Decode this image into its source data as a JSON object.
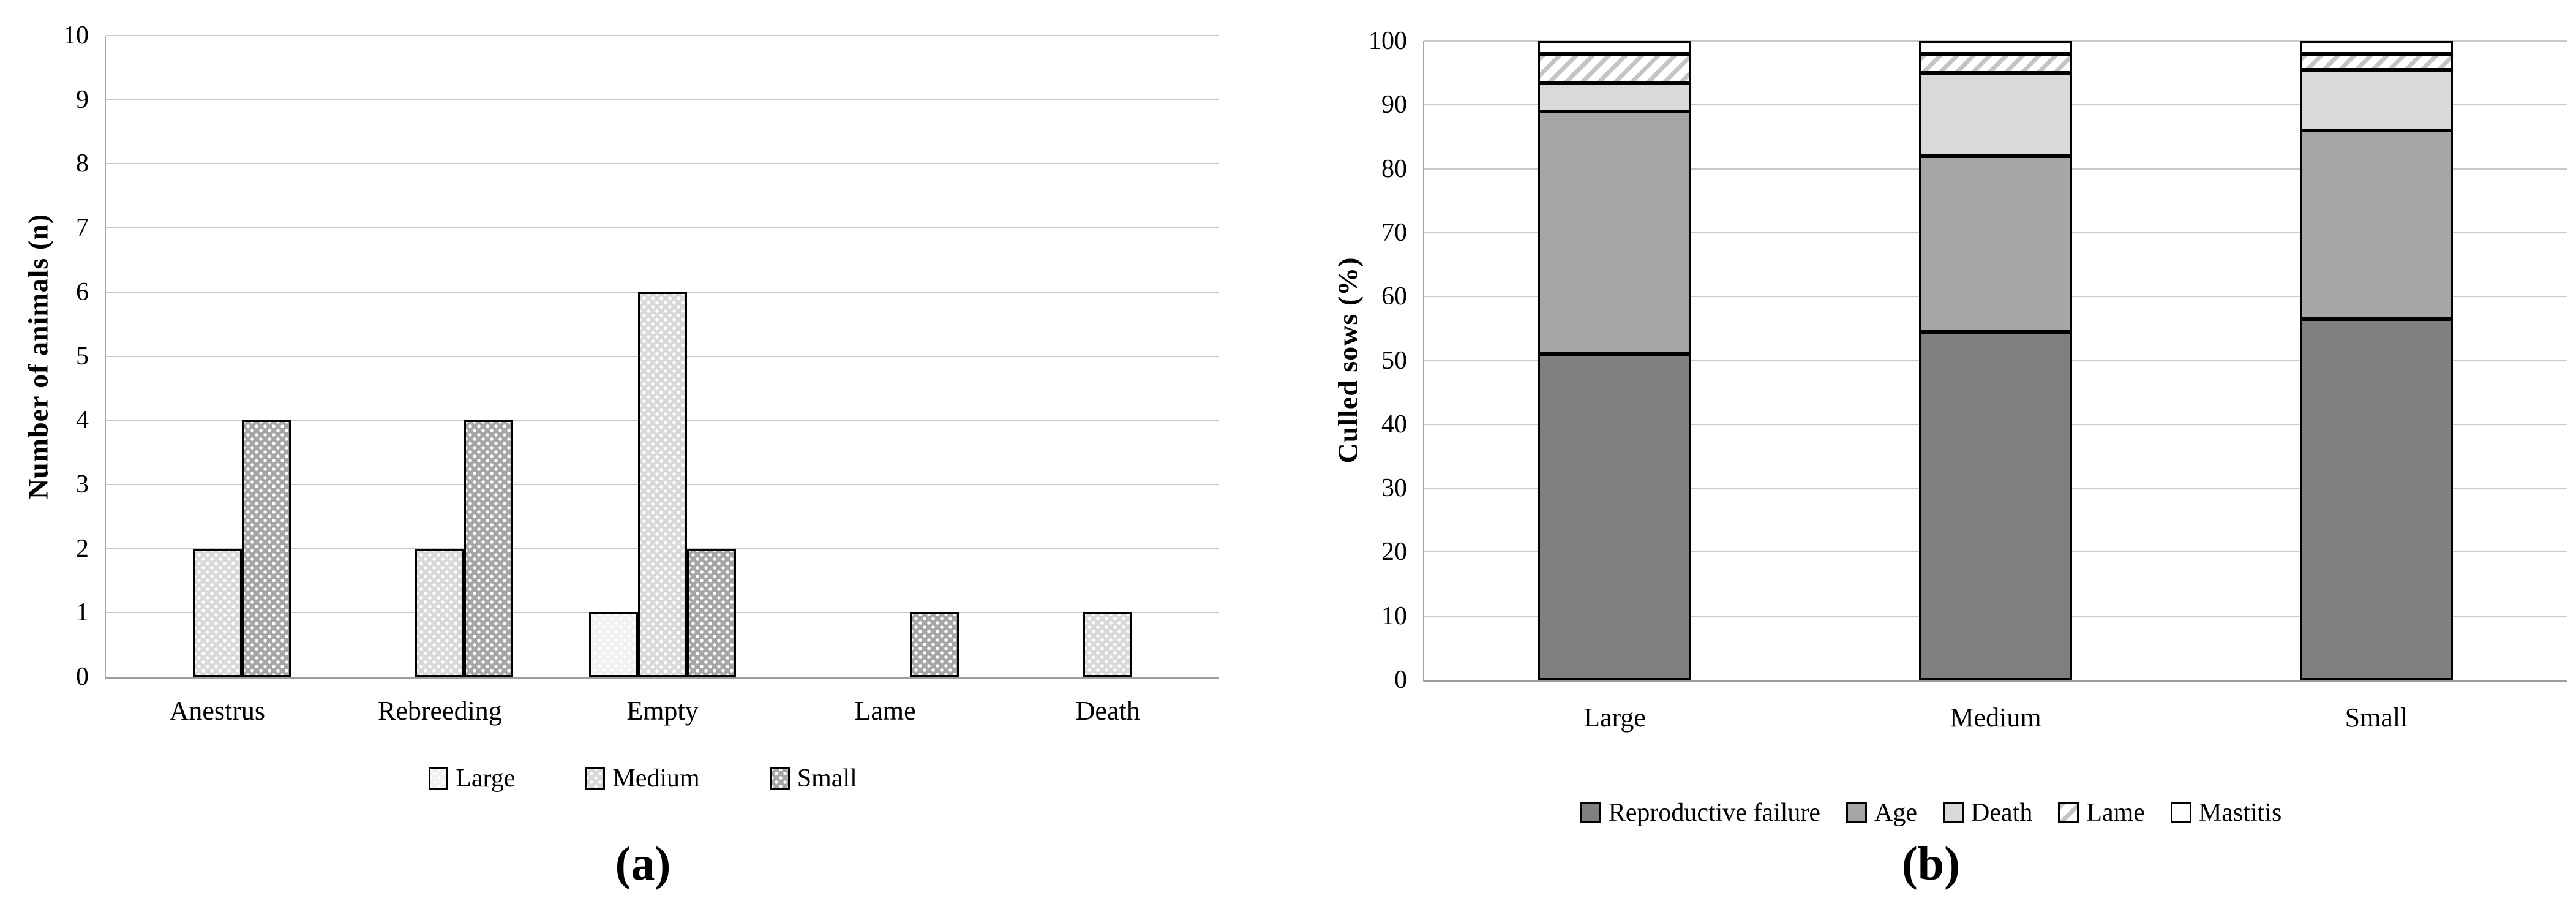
{
  "figure": {
    "caption_a": "(a)",
    "caption_b": "(b)"
  },
  "colors": {
    "gridline": "#c9c9c9",
    "axis_line": "#a6a6a6",
    "bar_outline": "#000000",
    "dark_gray": "#808080",
    "medium_gray": "#a6a6a6",
    "light_gray": "#d9d9d9",
    "near_white": "#f2f2f2",
    "white": "#ffffff"
  },
  "chart_data": [
    {
      "type": "bar",
      "panel": "a",
      "title": "",
      "xlabel": "",
      "ylabel": "Number of animals (n)",
      "ylim": [
        0,
        10
      ],
      "yticks": [
        0,
        1,
        2,
        3,
        4,
        5,
        6,
        7,
        8,
        9,
        10
      ],
      "grid": true,
      "legend_position": "bottom",
      "categories": [
        "Anestrus",
        "Rebreeding",
        "Empty",
        "Lame",
        "Death"
      ],
      "series": [
        {
          "name": "Large",
          "pattern": "dots",
          "fill": "#f2f2f2",
          "values": [
            0,
            0,
            1,
            0,
            0
          ]
        },
        {
          "name": "Medium",
          "pattern": "dots",
          "fill": "#d9d9d9",
          "values": [
            2,
            2,
            6,
            0,
            1
          ]
        },
        {
          "name": "Small",
          "pattern": "dots",
          "fill": "#a6a6a6",
          "values": [
            4,
            4,
            2,
            1,
            0
          ]
        }
      ]
    },
    {
      "type": "stacked-bar",
      "panel": "b",
      "title": "",
      "xlabel": "",
      "ylabel": "Culled sows (%)",
      "ylim": [
        0,
        100
      ],
      "yticks": [
        0,
        10,
        20,
        30,
        40,
        50,
        60,
        70,
        80,
        90,
        100
      ],
      "grid": true,
      "legend_position": "bottom",
      "categories": [
        "Large",
        "Medium",
        "Small"
      ],
      "series": [
        {
          "name": "Reproductive failure",
          "pattern": "solid",
          "fill": "#808080",
          "values": [
            51,
            54.5,
            56.5
          ]
        },
        {
          "name": "Age",
          "pattern": "solid",
          "fill": "#a6a6a6",
          "values": [
            38,
            27.5,
            29.5
          ]
        },
        {
          "name": "Death",
          "pattern": "solid",
          "fill": "#d9d9d9",
          "values": [
            4.5,
            13,
            9.5
          ]
        },
        {
          "name": "Lame",
          "pattern": "hatch",
          "fill": "#ffffff",
          "values": [
            4.5,
            3,
            2.5
          ]
        },
        {
          "name": "Mastitis",
          "pattern": "solid",
          "fill": "#ffffff",
          "values": [
            2,
            2,
            2
          ]
        }
      ]
    }
  ]
}
